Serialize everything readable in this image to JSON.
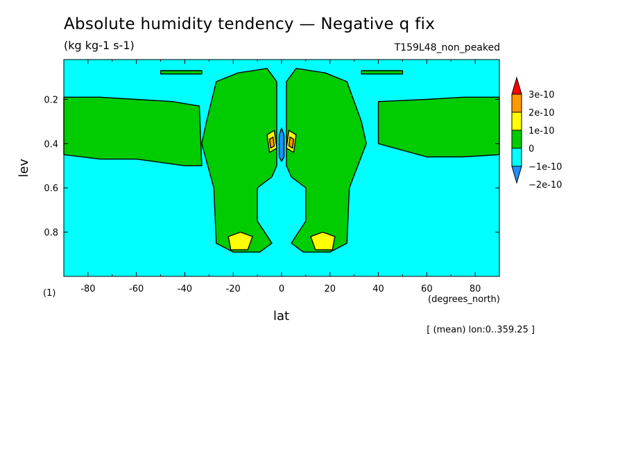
{
  "chart_data": {
    "type": "heatmap",
    "title": "Absolute humidity tendency — Negative q fix",
    "subtitle": "(kg kg-1 s-1)",
    "run_label": "T159L48_non_peaked",
    "note": "[ (mean) lon:0..359.25 ]",
    "xlabel": "lat",
    "x_unit": "(degrees_north)",
    "ylabel": "lev",
    "y_unit": "(1)",
    "xlim": [
      -90,
      90
    ],
    "ylim": [
      1.0,
      0.02
    ],
    "x_ticks": [
      -80,
      -60,
      -40,
      -20,
      0,
      20,
      40,
      60,
      80
    ],
    "y_ticks": [
      0.2,
      0.4,
      0.6,
      0.8
    ],
    "colorbar": {
      "levels": [
        {
          "label": "3e-10",
          "color": "#ff0000"
        },
        {
          "label": "2e-10",
          "color": "#ff9900"
        },
        {
          "label": "1e-10",
          "color": "#ffff00"
        },
        {
          "label": "0",
          "color": "#00cc00"
        },
        {
          "label": "−1e-10",
          "color": "#00ffff"
        },
        {
          "label": "−2e-10",
          "color": "#1e90ff"
        }
      ]
    },
    "background_color": "#00ffff",
    "regions": [
      {
        "value": "0 to 1e-10",
        "color": "#00cc00",
        "outline": [
          [
            -90,
            0.19
          ],
          [
            -75,
            0.19
          ],
          [
            -60,
            0.2
          ],
          [
            -45,
            0.21
          ],
          [
            -34,
            0.23
          ],
          [
            -33,
            0.5
          ],
          [
            -40,
            0.5
          ],
          [
            -60,
            0.47
          ],
          [
            -75,
            0.47
          ],
          [
            -90,
            0.45
          ]
        ]
      },
      {
        "value": "0 to 1e-10",
        "color": "#00cc00",
        "outline": [
          [
            90,
            0.19
          ],
          [
            75,
            0.19
          ],
          [
            60,
            0.2
          ],
          [
            40,
            0.21
          ],
          [
            40,
            0.4
          ],
          [
            60,
            0.46
          ],
          [
            75,
            0.46
          ],
          [
            90,
            0.45
          ]
        ]
      },
      {
        "value": "0 to 1e-10",
        "color": "#00cc00",
        "outline": [
          [
            -27,
            0.12
          ],
          [
            -18,
            0.08
          ],
          [
            -6,
            0.06
          ],
          [
            -2,
            0.12
          ],
          [
            -2,
            0.5
          ],
          [
            -4,
            0.55
          ],
          [
            -10,
            0.6
          ],
          [
            -10,
            0.75
          ],
          [
            -4,
            0.85
          ],
          [
            -9,
            0.89
          ],
          [
            -20,
            0.89
          ],
          [
            -27,
            0.85
          ],
          [
            -28,
            0.6
          ],
          [
            -33,
            0.4
          ],
          [
            -31,
            0.3
          ]
        ]
      },
      {
        "value": "0 to 1e-10",
        "color": "#00cc00",
        "outline": [
          [
            27,
            0.12
          ],
          [
            18,
            0.08
          ],
          [
            6,
            0.06
          ],
          [
            2,
            0.12
          ],
          [
            2,
            0.5
          ],
          [
            4,
            0.55
          ],
          [
            10,
            0.6
          ],
          [
            10,
            0.75
          ],
          [
            4,
            0.85
          ],
          [
            9,
            0.89
          ],
          [
            20,
            0.89
          ],
          [
            27,
            0.85
          ],
          [
            28,
            0.6
          ],
          [
            35,
            0.4
          ],
          [
            33,
            0.3
          ]
        ]
      },
      {
        "value": "1e-10 to 2e-10",
        "color": "#ffff00",
        "outline": [
          [
            -22,
            0.82
          ],
          [
            -17,
            0.8
          ],
          [
            -12,
            0.82
          ],
          [
            -14,
            0.88
          ],
          [
            -21,
            0.88
          ]
        ]
      },
      {
        "value": "1e-10 to 2e-10",
        "color": "#ffff00",
        "outline": [
          [
            12,
            0.82
          ],
          [
            17,
            0.8
          ],
          [
            22,
            0.82
          ],
          [
            21,
            0.88
          ],
          [
            14,
            0.88
          ]
        ]
      },
      {
        "value": "1e-10 to 2e-10",
        "color": "#ffff00",
        "outline": [
          [
            -6,
            0.36
          ],
          [
            -3,
            0.34
          ],
          [
            -2,
            0.42
          ],
          [
            -5,
            0.44
          ]
        ]
      },
      {
        "value": "1e-10 to 2e-10",
        "color": "#ffff00",
        "outline": [
          [
            6,
            0.36
          ],
          [
            3,
            0.34
          ],
          [
            2,
            0.42
          ],
          [
            5,
            0.44
          ]
        ]
      },
      {
        "value": "2e-10 to 3e-10",
        "color": "#ff9900",
        "outline": [
          [
            -5,
            0.38
          ],
          [
            -3.5,
            0.37
          ],
          [
            -3,
            0.41
          ],
          [
            -4.5,
            0.42
          ]
        ]
      },
      {
        "value": "2e-10 to 3e-10",
        "color": "#ff9900",
        "outline": [
          [
            5,
            0.38
          ],
          [
            3.5,
            0.37
          ],
          [
            3,
            0.41
          ],
          [
            4.5,
            0.42
          ]
        ]
      },
      {
        "value": "-2e-10 to -1e-10",
        "color": "#1e90ff",
        "outline": [
          [
            -1,
            0.36
          ],
          [
            0,
            0.33
          ],
          [
            1,
            0.36
          ],
          [
            1,
            0.46
          ],
          [
            0,
            0.48
          ],
          [
            -1,
            0.46
          ]
        ]
      },
      {
        "value": "0 to 1e-10",
        "color": "#00cc00",
        "outline": [
          [
            -50,
            0.07
          ],
          [
            -33,
            0.07
          ],
          [
            -33,
            0.085
          ],
          [
            -50,
            0.085
          ]
        ]
      },
      {
        "value": "0 to 1e-10",
        "color": "#00cc00",
        "outline": [
          [
            33,
            0.07
          ],
          [
            50,
            0.07
          ],
          [
            50,
            0.085
          ],
          [
            33,
            0.085
          ]
        ]
      }
    ]
  }
}
